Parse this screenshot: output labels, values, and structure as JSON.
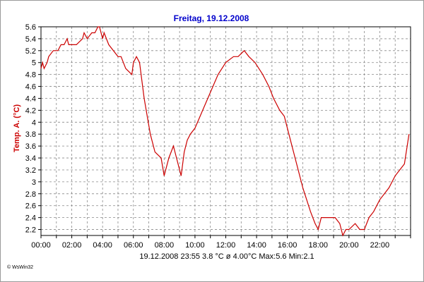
{
  "colors": {
    "title": "#0000cc",
    "ylabel": "#cc0000",
    "series": "#cc0000",
    "grid": "#888888",
    "axis": "#000000"
  },
  "info_line": "19.12.2008   23:55   3.8 °C   ø 4.00°C  Max:5.6  Min:2.1",
  "footer": "© WsWin32",
  "chart_data": {
    "type": "line",
    "title": "Freitag, 19.12.2008",
    "xlabel": "",
    "ylabel": "Temp. A.  (°C)",
    "x_unit": "hours",
    "xlim": [
      0,
      24
    ],
    "ylim": [
      2.1,
      5.6
    ],
    "x_tick_labels": [
      "00:00",
      "02:00",
      "04:00",
      "06:00",
      "08:00",
      "10:00",
      "12:00",
      "14:00",
      "16:00",
      "18:00",
      "20:00",
      "22:00"
    ],
    "y_tick_labels": [
      "2.2",
      "2.4",
      "2.6",
      "2.8",
      "3",
      "3.2",
      "3.4",
      "3.6",
      "3.8",
      "4",
      "4.2",
      "4.4",
      "4.6",
      "4.8",
      "5",
      "5.2",
      "5.4",
      "5.6"
    ],
    "grid": true,
    "series": [
      {
        "x": [
          0,
          0.1,
          0.2,
          0.4,
          0.5,
          0.8,
          1.0,
          1.1,
          1.3,
          1.4,
          1.5,
          1.7,
          1.8,
          2.0,
          2.3,
          2.7,
          2.8,
          3.0,
          3.3,
          3.5,
          3.7,
          3.8,
          3.9,
          4.0,
          4.1,
          4.4,
          5.0,
          5.2,
          5.5,
          5.9,
          6.0,
          6.2,
          6.4,
          6.7,
          7.1,
          7.4,
          7.8,
          8.0,
          8.3,
          8.6,
          8.8,
          9.1,
          9.3,
          9.5,
          9.7,
          10.0,
          10.5,
          11.0,
          11.5,
          12.0,
          12.5,
          12.8,
          13.2,
          13.5,
          13.9,
          14.4,
          14.8,
          15.1,
          15.5,
          15.8,
          16.1,
          16.5,
          17.0,
          17.5,
          17.8,
          18.0,
          18.2,
          18.7,
          19.1,
          19.4,
          19.6,
          19.8,
          20.0,
          20.4,
          20.7,
          21.0,
          21.3,
          21.6,
          22.0,
          22.3,
          22.6,
          23.0,
          23.3,
          23.6,
          23.9
        ],
        "y": [
          4.9,
          5.0,
          4.9,
          5.0,
          5.1,
          5.2,
          5.2,
          5.2,
          5.3,
          5.3,
          5.3,
          5.4,
          5.3,
          5.3,
          5.3,
          5.4,
          5.5,
          5.4,
          5.5,
          5.5,
          5.6,
          5.6,
          5.5,
          5.4,
          5.5,
          5.3,
          5.1,
          5.1,
          4.9,
          4.8,
          5.0,
          5.1,
          5.0,
          4.4,
          3.8,
          3.5,
          3.4,
          3.1,
          3.4,
          3.6,
          3.4,
          3.1,
          3.5,
          3.7,
          3.8,
          3.9,
          4.2,
          4.5,
          4.8,
          5.0,
          5.1,
          5.1,
          5.2,
          5.1,
          5.0,
          4.8,
          4.6,
          4.4,
          4.2,
          4.1,
          3.8,
          3.4,
          2.9,
          2.5,
          2.3,
          2.2,
          2.4,
          2.4,
          2.4,
          2.3,
          2.1,
          2.2,
          2.2,
          2.3,
          2.2,
          2.2,
          2.4,
          2.5,
          2.7,
          2.8,
          2.9,
          3.1,
          3.2,
          3.3,
          3.8
        ]
      }
    ]
  }
}
